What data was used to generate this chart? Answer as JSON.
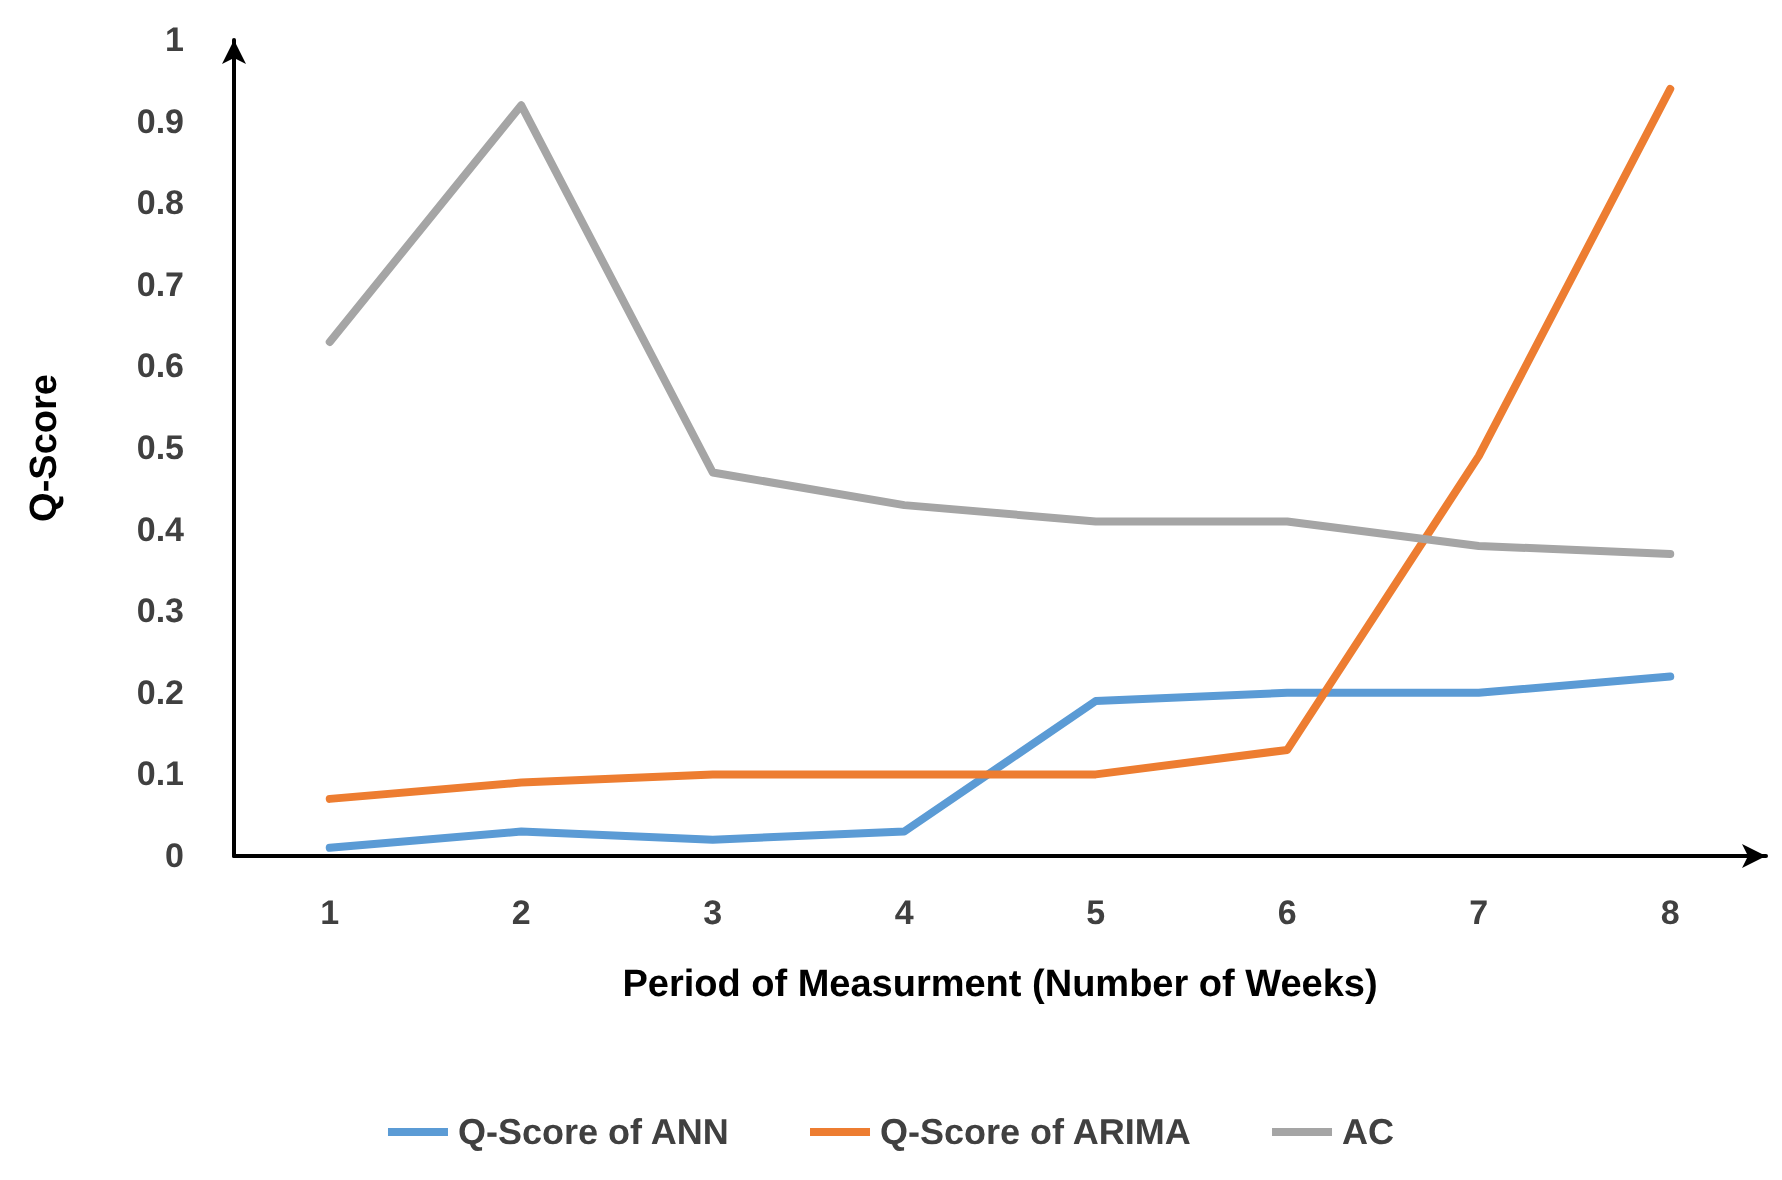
{
  "chart_data": {
    "type": "line",
    "xlabel": "Period of Measurment (Number of Weeks)",
    "ylabel": "Q-Score",
    "categories": [
      "1",
      "2",
      "3",
      "4",
      "5",
      "6",
      "7",
      "8"
    ],
    "ylim": [
      0,
      1
    ],
    "yticks": [
      0,
      0.1,
      0.2,
      0.3,
      0.4,
      0.5,
      0.6,
      0.7,
      0.8,
      0.9,
      1
    ],
    "grid": false,
    "legend": "bottom",
    "marker": "none",
    "line_style": "solid",
    "series": [
      {
        "name": "Q-Score of ANN",
        "color": "#5b9bd5",
        "values": [
          0.01,
          0.03,
          0.02,
          0.03,
          0.19,
          0.2,
          0.2,
          0.22
        ]
      },
      {
        "name": "Q-Score of ARIMA",
        "color": "#ed7d31",
        "values": [
          0.07,
          0.09,
          0.1,
          0.1,
          0.1,
          0.13,
          0.49,
          0.94
        ]
      },
      {
        "name": "AC",
        "color": "#a5a5a5",
        "values": [
          0.63,
          0.92,
          0.47,
          0.43,
          0.41,
          0.41,
          0.38,
          0.37
        ]
      }
    ]
  }
}
